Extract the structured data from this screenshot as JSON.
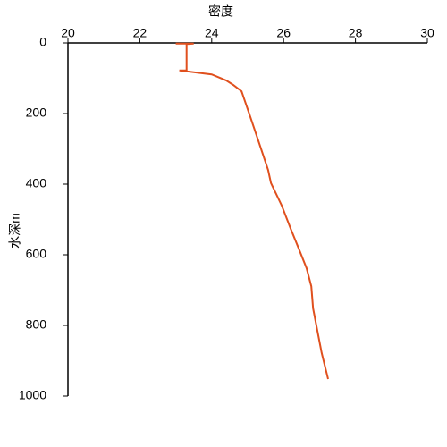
{
  "chart_data": {
    "type": "line",
    "x_label": "密度",
    "y_label": "水深m",
    "x": [
      23.0,
      23.5,
      23.3,
      23.3,
      23.1,
      23.5,
      24.0,
      24.4,
      24.6,
      24.83,
      25.07,
      25.32,
      25.57,
      25.65,
      25.95,
      26.19,
      26.44,
      26.64,
      26.77,
      26.82,
      26.94,
      27.06,
      27.24
    ],
    "values": [
      2,
      2,
      3,
      78,
      78,
      83,
      89,
      106,
      119,
      137,
      208,
      284,
      360,
      397,
      461,
      524,
      587,
      638,
      689,
      752,
      815,
      878,
      952
    ],
    "color": "#e0501e",
    "label_color": "#e46c0a",
    "xlim": [
      20,
      30
    ],
    "xticks": [
      20,
      22,
      24,
      26,
      28,
      30
    ],
    "ylim": [
      0,
      1000
    ],
    "yticks": [
      0,
      200,
      400,
      600,
      800,
      1000
    ],
    "y_reversed": true,
    "x_axis_position": "top",
    "grid": false
  }
}
